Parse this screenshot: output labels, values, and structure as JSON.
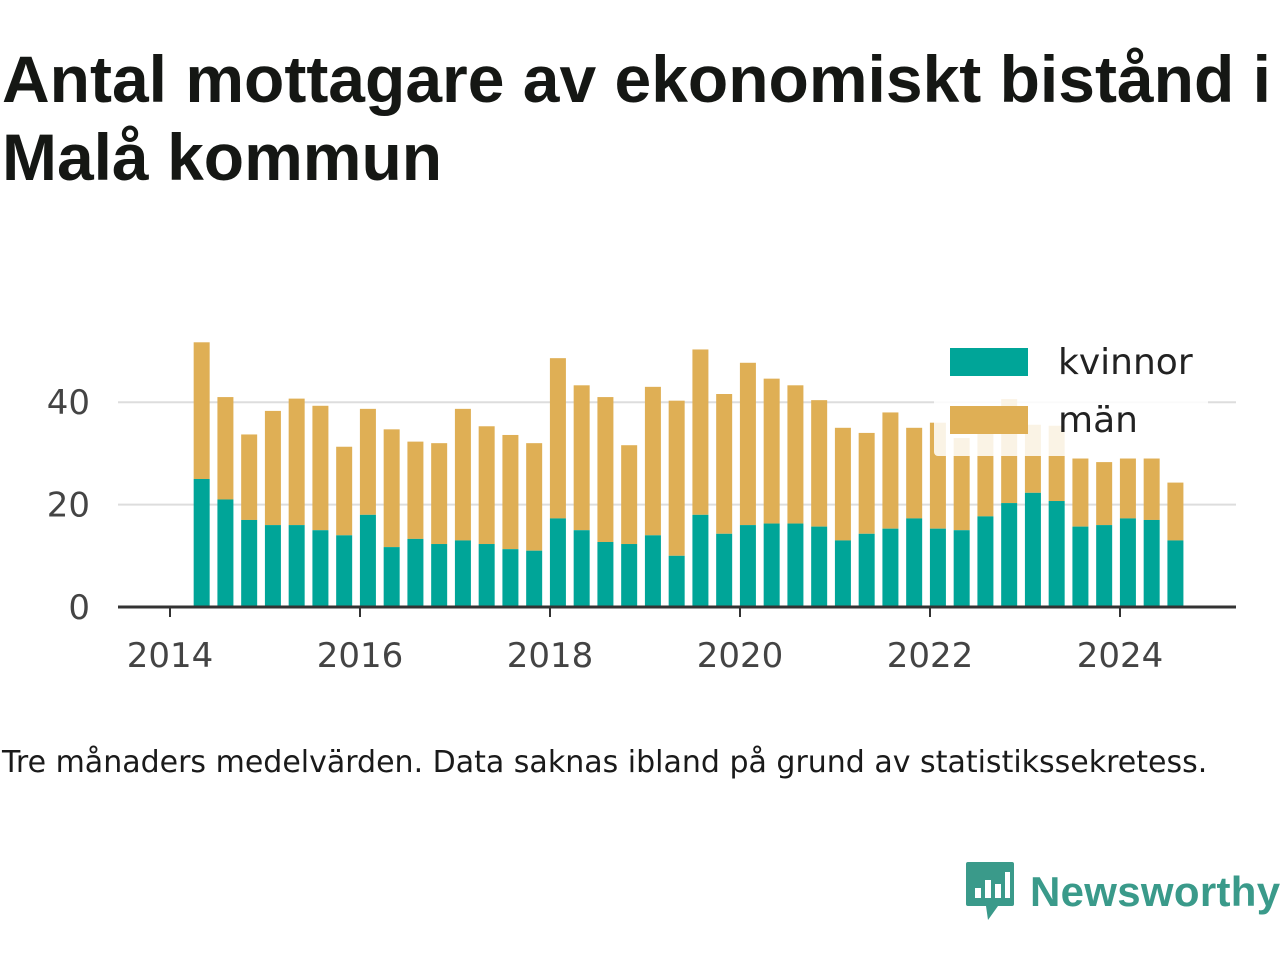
{
  "title": "Antal mottagare av ekonomiskt bistånd i Malå kommun",
  "caption": "Tre månaders medelvärden. Data saknas ibland på grund av statistikssekretess.",
  "brand": {
    "name": "Newsworthy",
    "icon": "newsworthy-logo-bar-chart-icon",
    "color": "#3a9a8a"
  },
  "colors": {
    "kvinnor": "#00a598",
    "man": "#dfaf55",
    "gridline": "#dddddd",
    "axis": "#333333"
  },
  "chart_data": {
    "type": "bar",
    "stacked": true,
    "title": "Antal mottagare av ekonomiskt bistånd i Malå kommun",
    "xlabel": "",
    "ylabel": "",
    "x_ticks": [
      "2014",
      "2016",
      "2018",
      "2020",
      "2022",
      "2024"
    ],
    "y_ticks": [
      0,
      20,
      40
    ],
    "ylim": [
      0,
      55
    ],
    "grid": "horizontal",
    "legend_position": "top-right",
    "dates": [
      "2014-05",
      "2014-08",
      "2014-11",
      "2015-02",
      "2015-05",
      "2015-08",
      "2015-11",
      "2016-02",
      "2016-05",
      "2016-08",
      "2016-11",
      "2017-02",
      "2017-05",
      "2017-08",
      "2017-11",
      "2018-02",
      "2018-05",
      "2018-08",
      "2018-11",
      "2019-02",
      "2019-05",
      "2019-08",
      "2019-11",
      "2020-02",
      "2020-05",
      "2020-08",
      "2020-11",
      "2021-02",
      "2021-05",
      "2021-08",
      "2021-11",
      "2022-02",
      "2022-05",
      "2022-08",
      "2022-11",
      "2023-02",
      "2023-05",
      "2023-08",
      "2023-11",
      "2024-02",
      "2024-05",
      "2024-08"
    ],
    "series": [
      {
        "name": "kvinnor",
        "color": "#00a598",
        "values": [
          25,
          21,
          17,
          16,
          16,
          15,
          14,
          18,
          11.7,
          13.3,
          12.3,
          13,
          12.3,
          11.3,
          11,
          17.3,
          15,
          12.7,
          12.3,
          14,
          10,
          18,
          14.3,
          16,
          16.3,
          16.3,
          15.7,
          13,
          14.3,
          15.3,
          17.3,
          15.3,
          15,
          17.7,
          20.3,
          22.3,
          20.7,
          15.7,
          16,
          17.3,
          17,
          13
        ]
      },
      {
        "name": "män",
        "color": "#dfaf55",
        "values": [
          26.7,
          20,
          16.7,
          22.3,
          24.7,
          24.3,
          17.3,
          20.7,
          23,
          19,
          19.7,
          25.7,
          23,
          22.3,
          21,
          31.3,
          28.3,
          28.3,
          19.3,
          29,
          30.3,
          32.3,
          27.3,
          31.7,
          28.3,
          27,
          24.7,
          22,
          19.7,
          22.7,
          17.7,
          20.7,
          18,
          18.3,
          20.3,
          13.3,
          14.7,
          13.3,
          12.3,
          11.7,
          12,
          11.3
        ]
      }
    ]
  }
}
